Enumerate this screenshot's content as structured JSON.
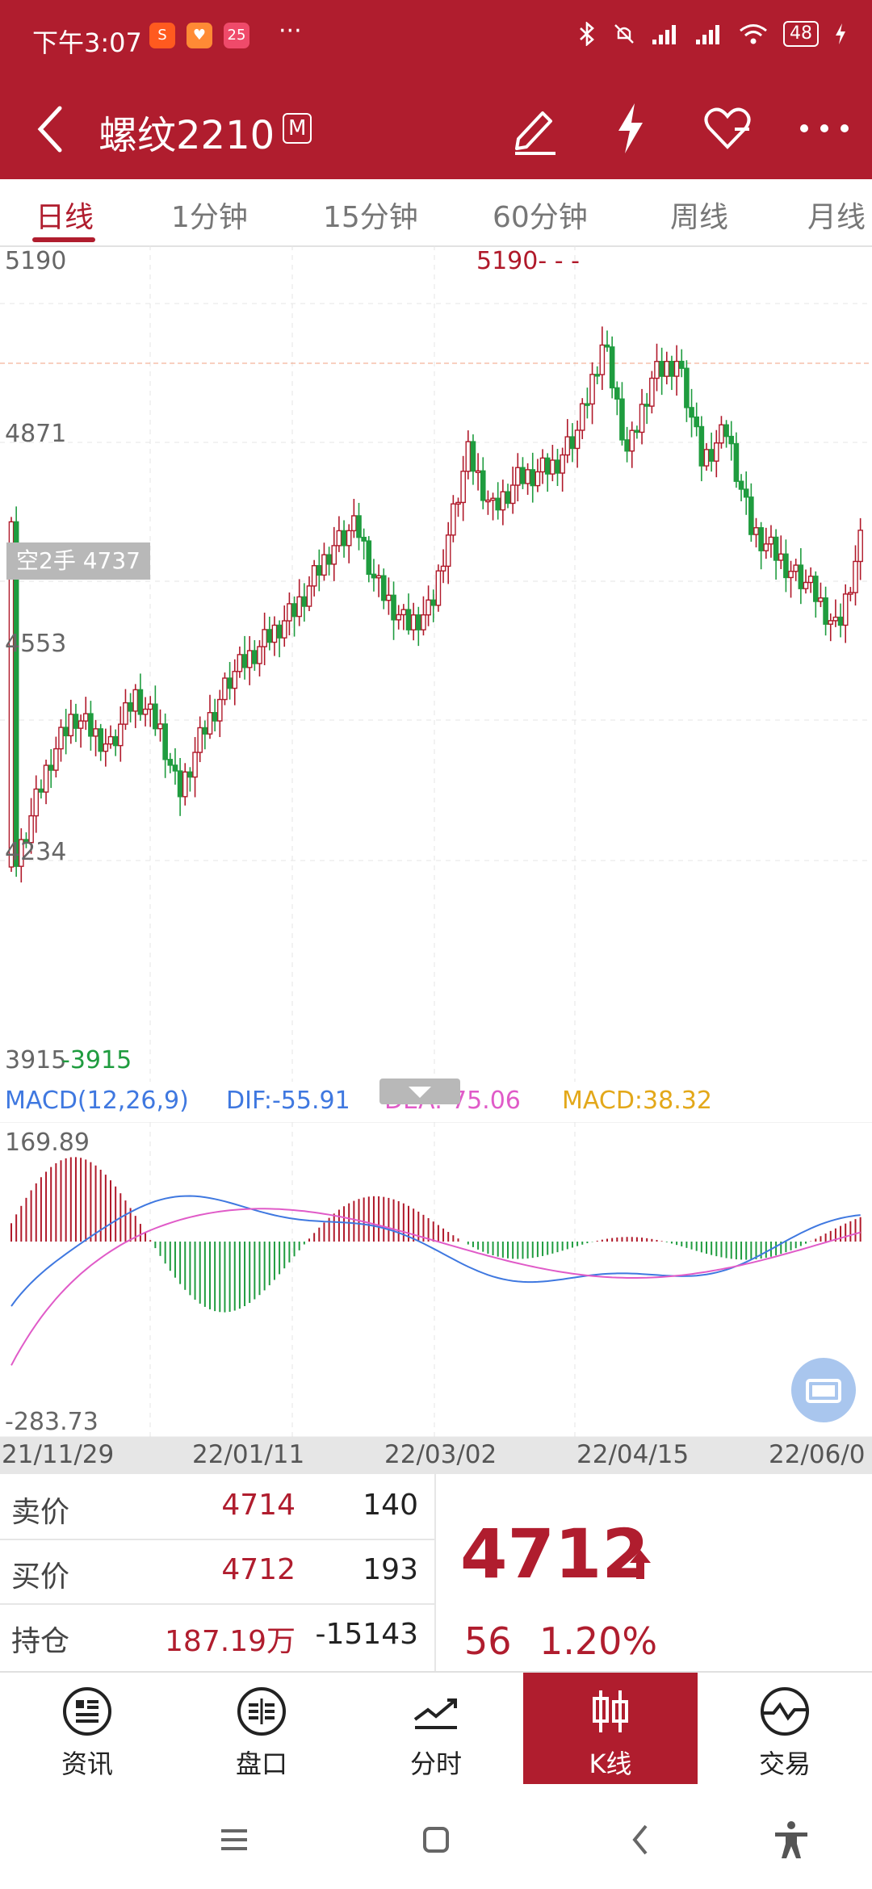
{
  "status": {
    "time": "下午3:07",
    "battery": "48",
    "app_icon_labels": [
      "S",
      "♥",
      "25"
    ],
    "dots": "···"
  },
  "header": {
    "back_icon": "back-arrow-icon",
    "title": "螺纹2210",
    "badge": "M"
  },
  "tabs": [
    {
      "label": "日线",
      "active": true
    },
    {
      "label": "1分钟",
      "active": false
    },
    {
      "label": "15分钟",
      "active": false
    },
    {
      "label": "60分钟",
      "active": false
    },
    {
      "label": "周线",
      "active": false
    },
    {
      "label": "月线",
      "active": false
    }
  ],
  "kline": {
    "y_labels": [
      "5190",
      "4871",
      "4553",
      "4234",
      "3915"
    ],
    "high_marker": "5190- - -",
    "low_marker": "-3915",
    "position_tag": "空2手 4737",
    "up_color": "#b0192a",
    "down_color": "#1f9c3f"
  },
  "macd": {
    "title": "MACD(12,26,9)",
    "dif": "DIF:-55.91",
    "dea": "DEA:-75.06",
    "macd": "MACD:38.32",
    "max_label": "169.89",
    "min_label": "-283.73",
    "dif_color": "#3f78e0",
    "dea_color": "#e05bc8",
    "macd_color": "#e3a81a"
  },
  "dates": [
    "21/11/29",
    "22/01/11",
    "22/03/02",
    "22/04/15",
    "22/06/0"
  ],
  "quote": {
    "sell": {
      "label": "卖价",
      "price": "4714",
      "volume": "140"
    },
    "buy": {
      "label": "买价",
      "price": "4712",
      "volume": "193"
    },
    "hold": {
      "label": "持仓",
      "value": "187.19万",
      "change": "-15143"
    },
    "last_price": "4712",
    "change": "56",
    "change_pct": "1.20%"
  },
  "nav": [
    {
      "label": "资讯",
      "icon": "news-icon",
      "active": false
    },
    {
      "label": "盘口",
      "icon": "orderbook-icon",
      "active": false
    },
    {
      "label": "分时",
      "icon": "timeshare-icon",
      "active": false
    },
    {
      "label": "K线",
      "icon": "kline-icon",
      "active": true
    },
    {
      "label": "交易",
      "icon": "trade-icon",
      "active": false
    }
  ]
}
